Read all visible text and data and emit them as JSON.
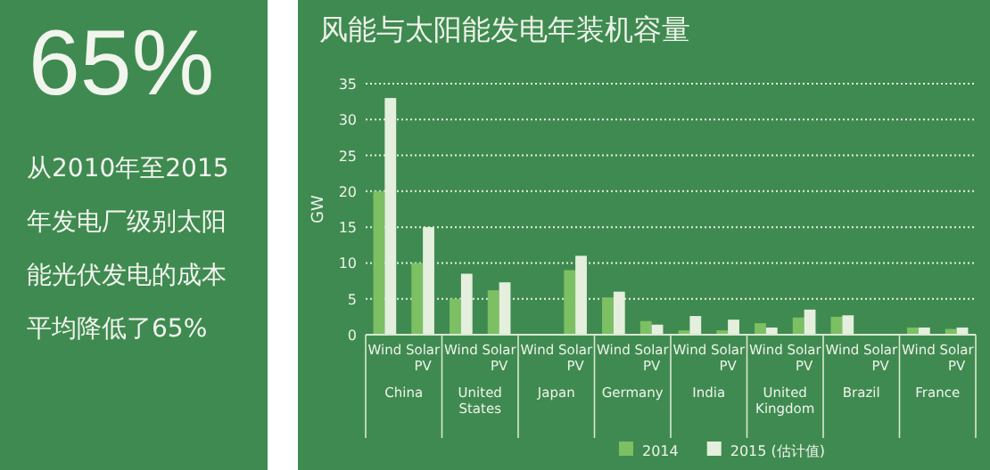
{
  "chart_data": [
    {
      "type": "other",
      "title": "65%",
      "subtitle": "从2010年至2015年发电厂级别太阳能光伏发电的成本平均降低了65%"
    },
    {
      "type": "bar",
      "title": "风能与太阳能发电年装机容量",
      "ylabel": "GW",
      "categories": [
        "Wind",
        "Solar PV",
        "Wind",
        "Solar PV",
        "Wind",
        "Solar PV",
        "Wind",
        "Solar PV",
        "Wind",
        "Solar PV",
        "Wind",
        "Solar PV",
        "Wind",
        "Solar PV",
        "Wind",
        "Solar PV"
      ],
      "annotations": [
        "China",
        "United States",
        "Japan",
        "Germany",
        "India",
        "United Kingdom",
        "Brazil",
        "France"
      ],
      "series": [
        {
          "name": "2014",
          "color": "#7cc063",
          "values": [
            20,
            10,
            5,
            6.2,
            null,
            9,
            5.2,
            1.9,
            0.6,
            0.6,
            1.6,
            2.4,
            2.5,
            null,
            1,
            0.8
          ]
        },
        {
          "name": "2015 (估计值)",
          "color": "#e4efdd",
          "values": [
            33,
            15,
            8.5,
            7.3,
            null,
            11,
            6,
            1.4,
            2.6,
            2.1,
            1,
            3.5,
            2.7,
            null,
            1,
            1
          ]
        }
      ],
      "ylim": [
        0,
        35
      ],
      "yticks": [
        0,
        5,
        10,
        15,
        20,
        25,
        30,
        35
      ],
      "grid": "y",
      "legend": "bottom"
    }
  ]
}
